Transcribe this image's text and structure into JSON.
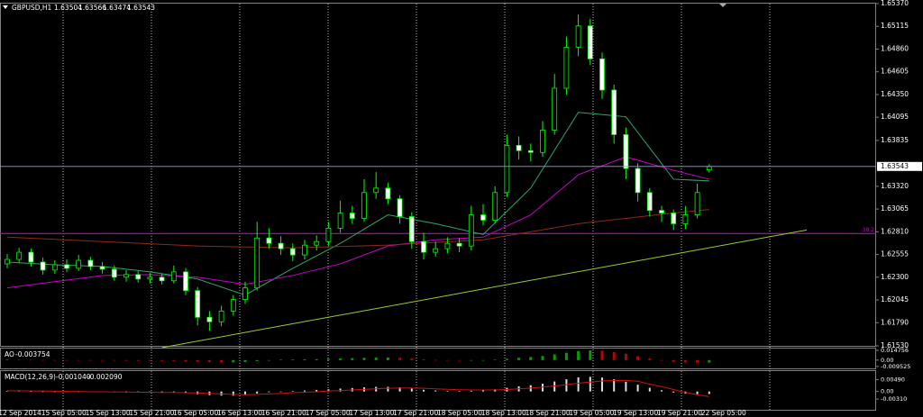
{
  "chart_data": [
    {
      "type": "candlestick",
      "title": "GBPUSD,H1",
      "open": [
        1.6245,
        1.625,
        1.6258,
        1.6247,
        1.6238,
        1.6244,
        1.624,
        1.6249,
        1.6242,
        1.6239,
        1.623,
        1.6233,
        1.6228,
        1.623,
        1.6226,
        1.6236,
        1.6215,
        1.6185,
        1.618,
        1.6192,
        1.6205,
        1.6218,
        1.6274,
        1.6268,
        1.6262,
        1.6255,
        1.6266,
        1.627,
        1.6285,
        1.6302,
        1.6296,
        1.6325,
        1.633,
        1.6318,
        1.6298,
        1.627,
        1.6258,
        1.6262,
        1.6268,
        1.6265,
        1.63,
        1.6294,
        1.6325,
        1.6378,
        1.6372,
        1.637,
        1.6395,
        1.6442,
        1.6488,
        1.6512,
        1.6475,
        1.644,
        1.639,
        1.6352,
        1.6325,
        1.6305,
        1.6302,
        1.629,
        1.63,
        1.63504
      ],
      "high": [
        1.6256,
        1.6263,
        1.6262,
        1.6252,
        1.6249,
        1.625,
        1.6255,
        1.6253,
        1.6247,
        1.6243,
        1.6238,
        1.6237,
        1.6235,
        1.6234,
        1.6243,
        1.624,
        1.6219,
        1.6192,
        1.6198,
        1.621,
        1.6225,
        1.6292,
        1.6285,
        1.6276,
        1.6268,
        1.6272,
        1.6277,
        1.6292,
        1.6316,
        1.631,
        1.634,
        1.6348,
        1.6336,
        1.6322,
        1.6303,
        1.628,
        1.627,
        1.6275,
        1.6274,
        1.631,
        1.6312,
        1.6332,
        1.639,
        1.6388,
        1.638,
        1.6405,
        1.6458,
        1.65,
        1.6525,
        1.652,
        1.6482,
        1.6446,
        1.6398,
        1.6358,
        1.633,
        1.631,
        1.6306,
        1.631,
        1.6335,
        1.63566
      ],
      "low": [
        1.624,
        1.6246,
        1.6242,
        1.6233,
        1.6234,
        1.6236,
        1.6237,
        1.6238,
        1.6234,
        1.6226,
        1.6225,
        1.6224,
        1.6223,
        1.6222,
        1.6223,
        1.621,
        1.6176,
        1.617,
        1.6175,
        1.6187,
        1.62,
        1.6215,
        1.6262,
        1.6255,
        1.6248,
        1.625,
        1.626,
        1.6265,
        1.628,
        1.629,
        1.6292,
        1.6318,
        1.6312,
        1.629,
        1.6262,
        1.625,
        1.6253,
        1.6257,
        1.6258,
        1.626,
        1.6288,
        1.629,
        1.632,
        1.6362,
        1.636,
        1.6365,
        1.639,
        1.6435,
        1.6478,
        1.6468,
        1.643,
        1.638,
        1.634,
        1.6315,
        1.6298,
        1.6292,
        1.6283,
        1.6284,
        1.6296,
        1.63474
      ],
      "close": [
        1.625,
        1.6258,
        1.6247,
        1.6238,
        1.6244,
        1.624,
        1.6249,
        1.6242,
        1.6239,
        1.623,
        1.6233,
        1.6228,
        1.623,
        1.6226,
        1.6236,
        1.6215,
        1.6185,
        1.618,
        1.6192,
        1.6205,
        1.6218,
        1.6274,
        1.6268,
        1.6262,
        1.6255,
        1.6266,
        1.627,
        1.6285,
        1.6302,
        1.6296,
        1.6325,
        1.633,
        1.6318,
        1.6298,
        1.627,
        1.6258,
        1.6262,
        1.6268,
        1.6265,
        1.63,
        1.6294,
        1.6325,
        1.6378,
        1.6372,
        1.637,
        1.6395,
        1.6442,
        1.6488,
        1.6512,
        1.6475,
        1.644,
        1.639,
        1.6352,
        1.6325,
        1.6305,
        1.6302,
        1.629,
        1.63,
        1.6325,
        1.63543
      ],
      "color": "#00ff00",
      "ylim": [
        1.6153,
        1.6537
      ],
      "yticks": [
        {
          "value": 1.6153,
          "label": "1.61530"
        },
        {
          "value": 1.6179,
          "label": "1.61790"
        },
        {
          "value": 1.62045,
          "label": "1.62045"
        },
        {
          "value": 1.623,
          "label": "1.62300"
        },
        {
          "value": 1.62555,
          "label": "1.62555"
        },
        {
          "value": 1.6281,
          "label": "1.62810"
        },
        {
          "value": 1.63065,
          "label": "1.63065"
        },
        {
          "value": 1.6332,
          "label": "1.63320"
        },
        {
          "value": 1.63835,
          "label": "1.63835"
        },
        {
          "value": 1.64095,
          "label": "1.64095"
        },
        {
          "value": 1.6435,
          "label": "1.64350"
        },
        {
          "value": 1.64605,
          "label": "1.64605"
        },
        {
          "value": 1.6486,
          "label": "1.64860"
        },
        {
          "value": 1.65115,
          "label": "1.65115"
        },
        {
          "value": 1.6537,
          "label": "1.65370"
        }
      ],
      "x_labels": [
        "12 Sep 2014",
        "15 Sep 05:00",
        "15 Sep 13:00",
        "15 Sep 21:00",
        "16 Sep 05:00",
        "16 Sep 13:00",
        "16 Sep 21:00",
        "17 Sep 05:00",
        "17 Sep 13:00",
        "17 Sep 21:00",
        "18 Sep 05:00",
        "18 Sep 13:00",
        "18 Sep 21:00",
        "19 Sep 05:00",
        "19 Sep 13:00",
        "19 Sep 21:00",
        "22 Sep 05:00"
      ],
      "ma": [
        {
          "color": "#2ea86b",
          "x": [
            0,
            4,
            8,
            12,
            16,
            20,
            24,
            28,
            32,
            36,
            40,
            44,
            48,
            52,
            56,
            59
          ],
          "values": [
            1.6247,
            1.6244,
            1.6242,
            1.6236,
            1.6228,
            1.621,
            1.624,
            1.6268,
            1.63,
            1.629,
            1.6278,
            1.633,
            1.6415,
            1.641,
            1.634,
            1.6338
          ]
        },
        {
          "color": "#c800c8",
          "x": [
            0,
            4,
            8,
            12,
            16,
            20,
            24,
            28,
            32,
            36,
            40,
            44,
            48,
            52,
            56,
            59
          ],
          "values": [
            1.6218,
            1.6225,
            1.6232,
            1.6233,
            1.623,
            1.6222,
            1.6232,
            1.6245,
            1.6265,
            1.6272,
            1.6275,
            1.63,
            1.6345,
            1.6365,
            1.635,
            1.634
          ]
        },
        {
          "color": "#8b2a1a",
          "x": [
            0,
            8,
            16,
            24,
            32,
            40,
            48,
            56,
            59
          ],
          "values": [
            1.6275,
            1.627,
            1.6265,
            1.6263,
            1.6266,
            1.6272,
            1.629,
            1.6302,
            1.6306
          ]
        }
      ],
      "level": {
        "label": "38.2",
        "value": 1.6279,
        "color": "#c800c8"
      },
      "trendline": {
        "x": [
          13,
          67.2
        ],
        "values": [
          1.6151,
          1.6283
        ],
        "color": "#9acd32"
      }
    },
    {
      "type": "bar",
      "title": "AO",
      "values": [
        0.0008,
        0.0006,
        0.0004,
        0.0002,
        0.0001,
        -0.0002,
        -0.0004,
        -0.0005,
        -0.0006,
        -0.0008,
        -0.001,
        -0.0011,
        -0.0012,
        -0.0013,
        -0.0014,
        -0.0018,
        -0.0025,
        -0.0032,
        -0.0036,
        -0.0035,
        -0.003,
        -0.0015,
        -0.0004,
        0.0005,
        0.001,
        0.0012,
        0.0015,
        0.002,
        0.0026,
        0.003,
        0.0035,
        0.004,
        0.004,
        0.0035,
        0.0025,
        0.0012,
        0.0002,
        -0.0005,
        -0.0008,
        -0.0006,
        0,
        0.0008,
        0.002,
        0.0035,
        0.0048,
        0.0062,
        0.0085,
        0.011,
        0.0135,
        0.0147,
        0.014,
        0.012,
        0.0095,
        0.006,
        0.0025,
        -0.0005,
        -0.0025,
        -0.0038,
        -0.004,
        -0.003754
      ],
      "up_color": "#00a000",
      "down_color": "#c00000",
      "ylim": [
        -0.0125,
        0.0175
      ],
      "yticks": [
        0.014756,
        {
          "value": 0,
          "label": "0.00"
        },
        -0.009525
      ]
    },
    {
      "type": "macd",
      "title": "MACD(12,26,9)",
      "main_label": "-0.001040",
      "signal_label": "-0.002090",
      "values": [
        0.0002,
        0.0002,
        0.0001,
        0,
        -0.0001,
        -0.0001,
        -0.0001,
        -0.0002,
        -0.0002,
        -0.0003,
        -0.0004,
        -0.0004,
        -0.0005,
        -0.0005,
        -0.0005,
        -0.0007,
        -0.0011,
        -0.0015,
        -0.0017,
        -0.0017,
        -0.0015,
        -0.0008,
        -0.0003,
        0,
        0.0002,
        0.0004,
        0.0006,
        0.0009,
        0.0012,
        0.0014,
        0.0017,
        0.0019,
        0.0019,
        0.0017,
        0.0012,
        0.0007,
        0.0004,
        0.0002,
        0.0001,
        0.0003,
        0.0005,
        0.0009,
        0.0015,
        0.0021,
        0.0026,
        0.0032,
        0.0041,
        0.005,
        0.0058,
        0.006,
        0.0057,
        0.005,
        0.004,
        0.0028,
        0.0015,
        0.0005,
        -0.0004,
        -0.0009,
        -0.0011,
        -0.00104
      ],
      "signal": [
        0.0003,
        0.0003,
        0.0002,
        0.0002,
        0.0001,
        0,
        0,
        -0.0001,
        -0.0001,
        -0.0002,
        -0.0002,
        -0.0003,
        -0.0003,
        -0.0004,
        -0.0004,
        -0.0005,
        -0.0006,
        -0.0008,
        -0.001,
        -0.0012,
        -0.0013,
        -0.0012,
        -0.001,
        -0.0008,
        -0.0005,
        -0.0003,
        -0.0001,
        0.0002,
        0.0004,
        0.0006,
        0.0009,
        0.0011,
        0.0013,
        0.0014,
        0.0014,
        0.0013,
        0.0011,
        0.0009,
        0.0007,
        0.0006,
        0.0006,
        0.0006,
        0.0008,
        0.0011,
        0.0014,
        0.0018,
        0.0023,
        0.0028,
        0.0034,
        0.0039,
        0.0043,
        0.0045,
        0.0045,
        0.0042,
        0.003,
        0.002,
        0.0008,
        -0.0004,
        -0.0013,
        -0.00209
      ],
      "color": "#e0e0e0",
      "signal_color": "#d01010",
      "ylim": [
        -0.0075,
        0.008
      ],
      "yticks": [
        {
          "value": 0.0049,
          "label": "0.00490"
        },
        {
          "value": 0,
          "label": "0.00"
        },
        {
          "value": -0.0031,
          "label": "-0.00310"
        }
      ]
    }
  ]
}
